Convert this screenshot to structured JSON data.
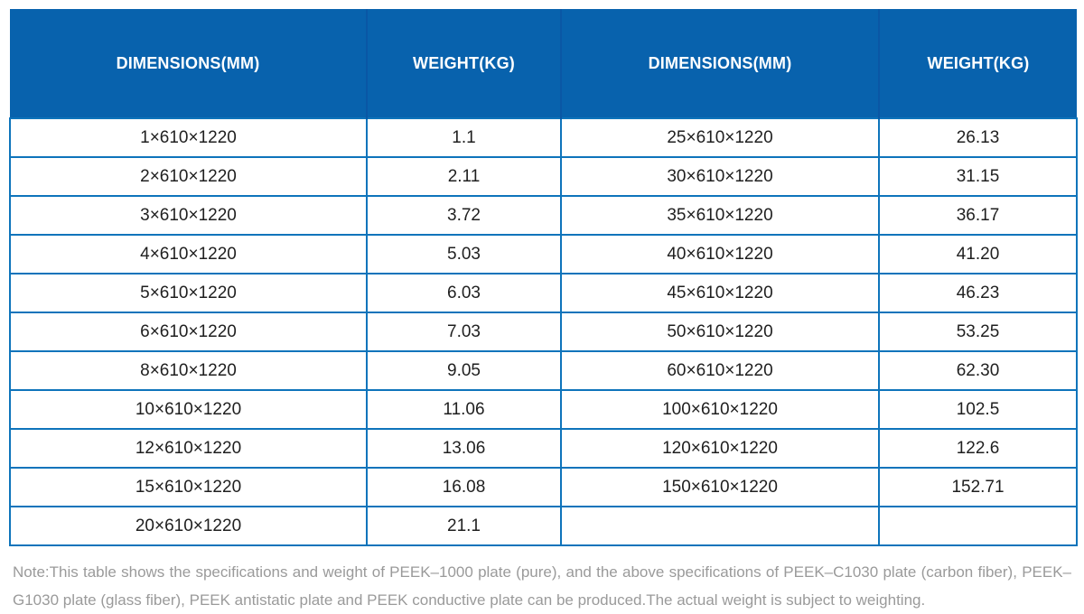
{
  "colors": {
    "header_bg": "#0862ad",
    "header_divider": "#0a57a5",
    "grid_border": "#0e74bb",
    "cell_text": "#1f1f1f",
    "header_text": "#ffffff",
    "note_text": "#9a9a9a"
  },
  "table": {
    "headers": [
      "DIMENSIONS(MM)",
      "WEIGHT(KG)",
      "DIMENSIONS(MM)",
      "WEIGHT(KG)"
    ],
    "rows": [
      [
        "1×610×1220",
        "1.1",
        "25×610×1220",
        "26.13"
      ],
      [
        "2×610×1220",
        "2.11",
        "30×610×1220",
        "31.15"
      ],
      [
        "3×610×1220",
        "3.72",
        "35×610×1220",
        "36.17"
      ],
      [
        "4×610×1220",
        "5.03",
        "40×610×1220",
        "41.20"
      ],
      [
        "5×610×1220",
        "6.03",
        "45×610×1220",
        "46.23"
      ],
      [
        "6×610×1220",
        "7.03",
        "50×610×1220",
        "53.25"
      ],
      [
        "8×610×1220",
        "9.05",
        "60×610×1220",
        "62.30"
      ],
      [
        "10×610×1220",
        "11.06",
        "100×610×1220",
        "102.5"
      ],
      [
        "12×610×1220",
        "13.06",
        "120×610×1220",
        "122.6"
      ],
      [
        "15×610×1220",
        "16.08",
        "150×610×1220",
        "152.71"
      ],
      [
        "20×610×1220",
        "21.1",
        "",
        ""
      ]
    ]
  },
  "note": "Note:This table shows the specifications and weight of PEEK–1000 plate (pure), and the above specifications of PEEK–C1030 plate (carbon fiber), PEEK–G1030 plate (glass fiber), PEEK antistatic plate and PEEK conductive plate can be produced.The actual weight is subject to weighting."
}
